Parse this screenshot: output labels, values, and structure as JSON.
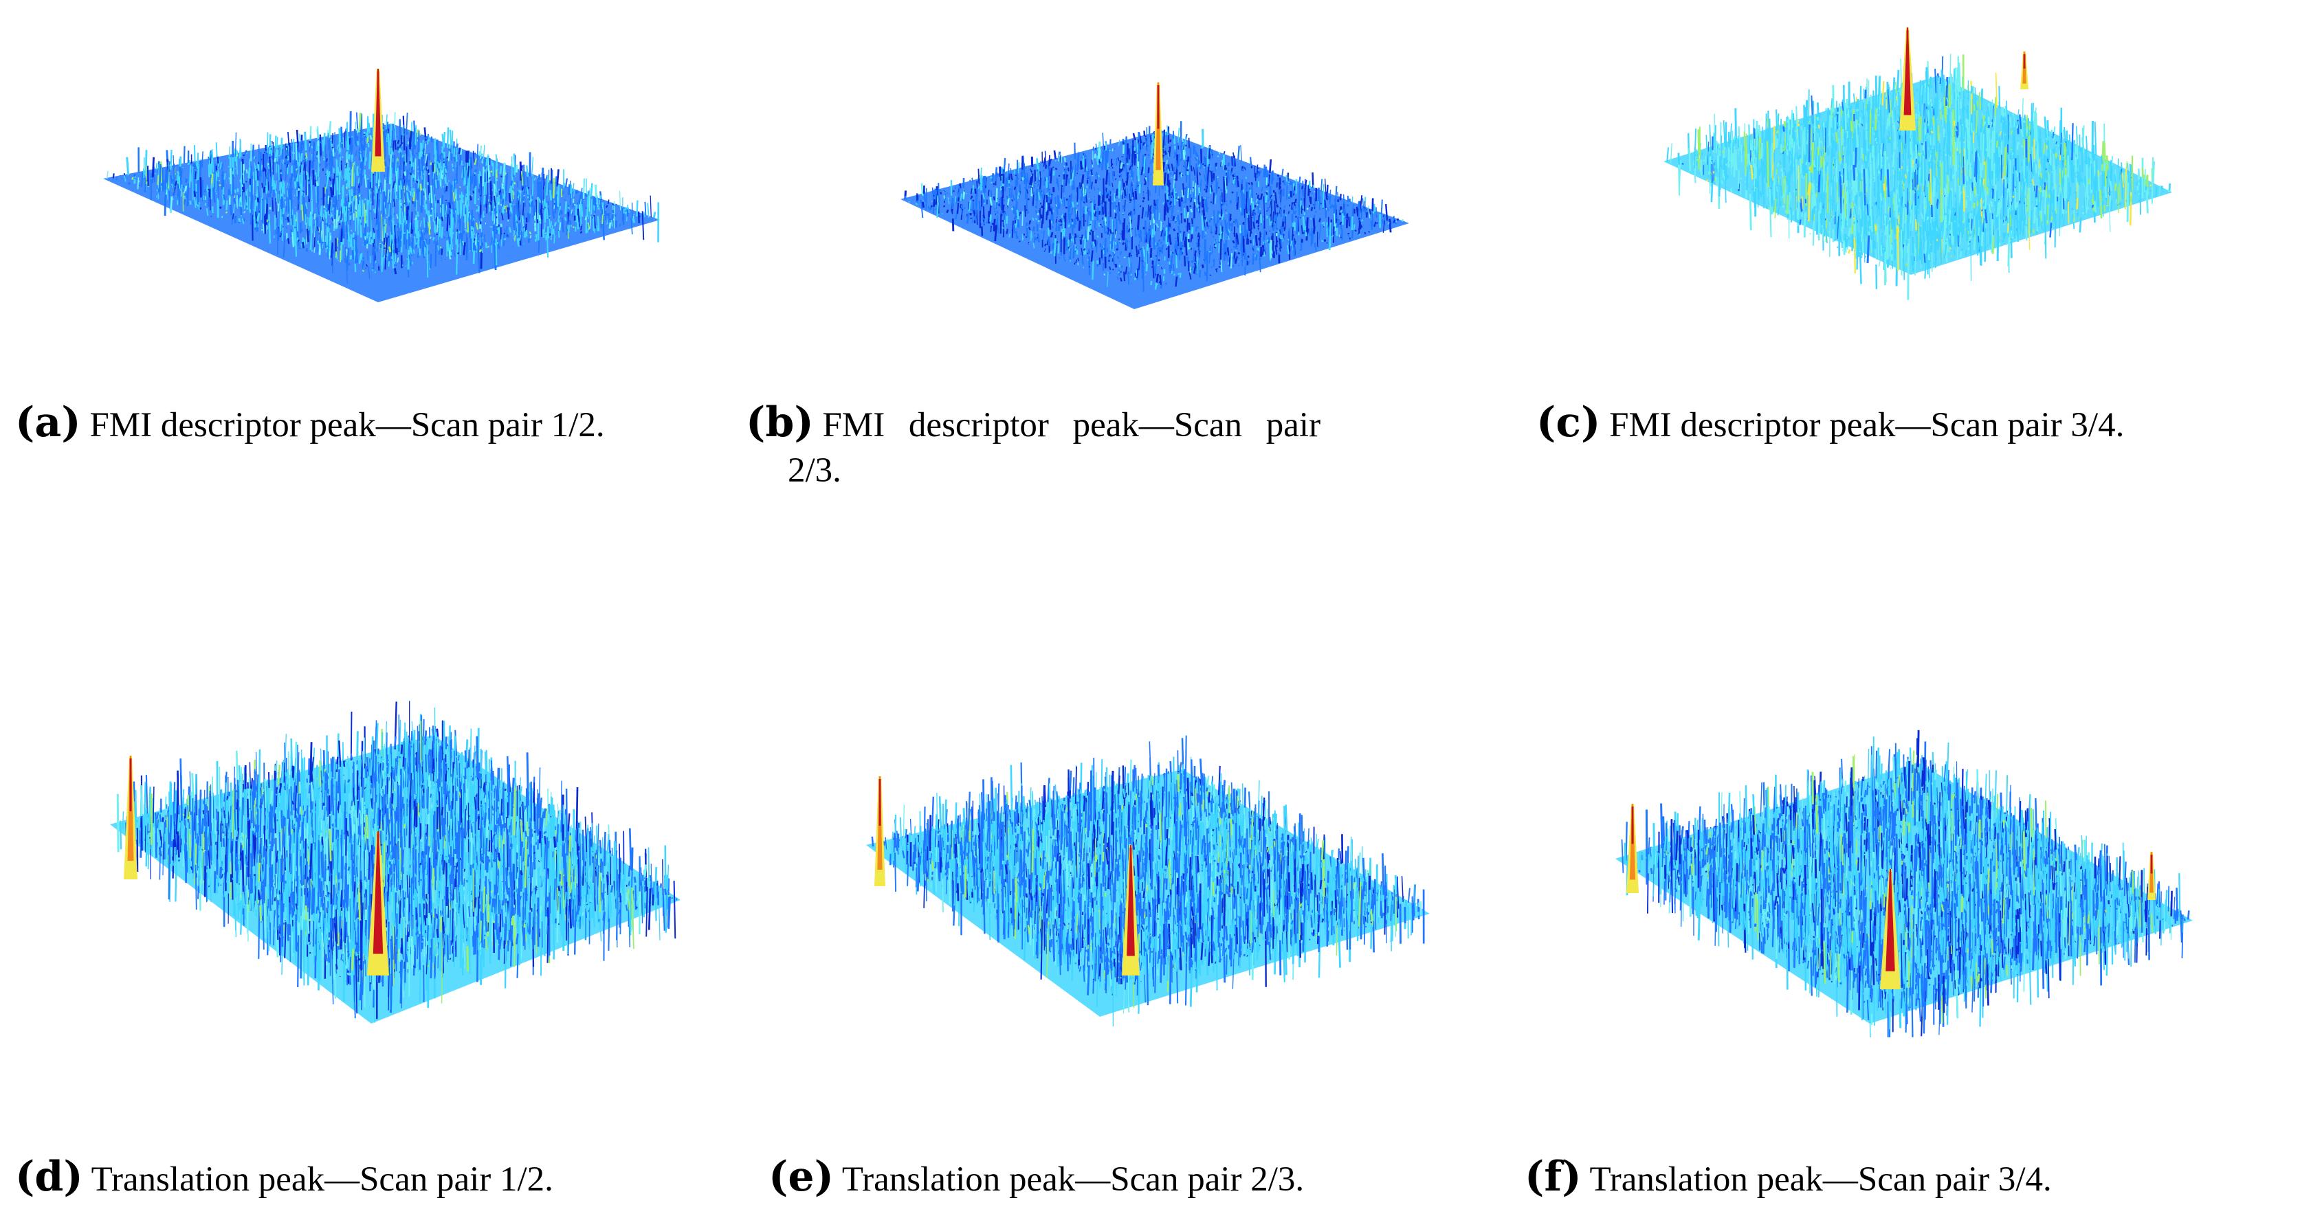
{
  "figure": {
    "panels": [
      {
        "id": "a",
        "tag": "a",
        "caption": "FMI descriptor peak—Scan pair 1/2."
      },
      {
        "id": "b",
        "tag": "b",
        "caption": "FMI descriptor peak—Scan pair",
        "caption_wrap": "2/3."
      },
      {
        "id": "c",
        "tag": "c",
        "caption": "FMI descriptor peak—Scan pair 3/4."
      },
      {
        "id": "d",
        "tag": "d",
        "caption": "Translation peak—Scan pair 1/2."
      },
      {
        "id": "e",
        "tag": "e",
        "caption": "Translation peak—Scan pair 2/3."
      },
      {
        "id": "f",
        "tag": "f",
        "caption": "Translation peak—Scan pair 3/4."
      }
    ],
    "colors": {
      "dark_blue": "#0a2bd6",
      "blue": "#1f78ff",
      "cyan": "#3fd6ff",
      "light_cyan": "#6ff0f2",
      "green": "#9ef06a",
      "yellow": "#f3e84a",
      "orange": "#f28a1e",
      "red": "#c8141e"
    }
  }
}
